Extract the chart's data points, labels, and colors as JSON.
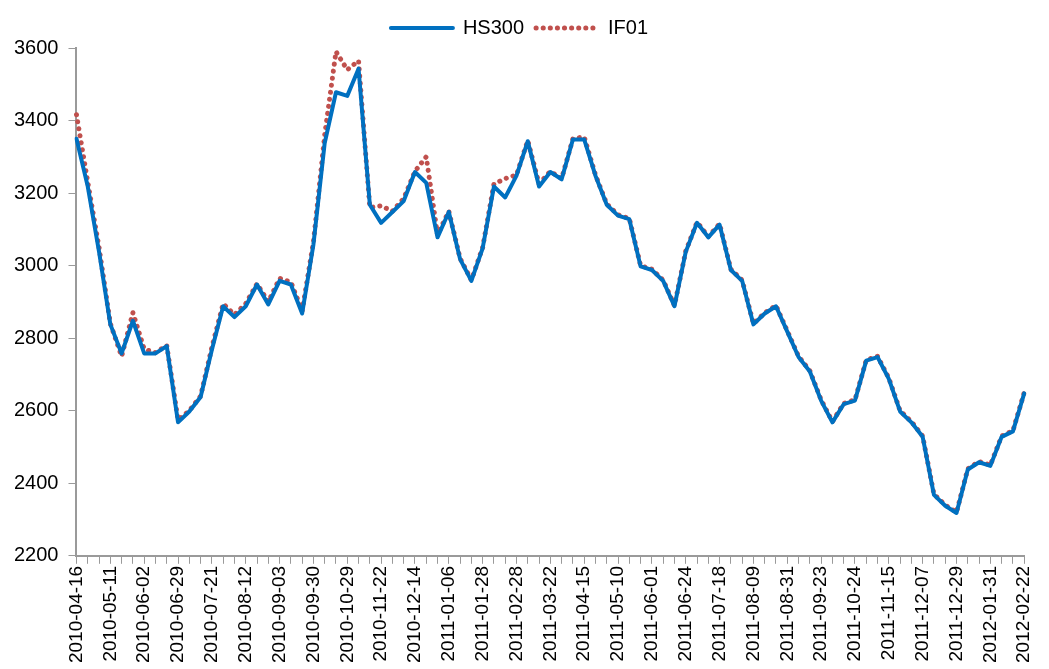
{
  "chart_data": {
    "type": "line",
    "categories": [
      "2010-04-16",
      null,
      null,
      "2010-05-11",
      null,
      null,
      "2010-06-02",
      null,
      null,
      "2010-06-29",
      null,
      null,
      "2010-07-21",
      null,
      null,
      "2010-08-12",
      null,
      null,
      "2010-09-03",
      null,
      null,
      "2010-09-30",
      null,
      null,
      "2010-10-29",
      null,
      null,
      "2010-11-22",
      null,
      null,
      "2010-12-14",
      null,
      null,
      "2011-01-06",
      null,
      null,
      "2011-01-28",
      null,
      null,
      "2011-02-28",
      null,
      null,
      "2011-03-22",
      null,
      null,
      "2011-04-15",
      null,
      null,
      "2011-05-10",
      null,
      null,
      "2011-06-01",
      null,
      null,
      "2011-06-24",
      null,
      null,
      "2011-07-18",
      null,
      null,
      "2011-08-09",
      null,
      null,
      "2011-08-31",
      null,
      null,
      "2011-09-23",
      null,
      null,
      "2011-10-24",
      null,
      null,
      "2011-11-15",
      null,
      null,
      "2011-12-07",
      null,
      null,
      "2011-12-29",
      null,
      null,
      "2012-01-31",
      null,
      null,
      "2012-02-22"
    ],
    "series": [
      {
        "name": "HS300",
        "color": "#0070c0",
        "line_style": "solid",
        "values": [
          3350,
          3218,
          3038,
          2838,
          2758,
          2848,
          2758,
          2758,
          2778,
          2568,
          2598,
          2638,
          2768,
          2888,
          2858,
          2888,
          2948,
          2893,
          2958,
          2948,
          2868,
          3058,
          3338,
          3478,
          3468,
          3543,
          3168,
          3118,
          3148,
          3178,
          3258,
          3228,
          3078,
          3148,
          3018,
          2958,
          3048,
          3218,
          3188,
          3248,
          3343,
          3218,
          3258,
          3238,
          3348,
          3348,
          3248,
          3168,
          3138,
          3128,
          2998,
          2988,
          2958,
          2888,
          3038,
          3118,
          3078,
          3113,
          2988,
          2958,
          2838,
          2868,
          2888,
          2818,
          2748,
          2708,
          2628,
          2568,
          2618,
          2628,
          2738,
          2748,
          2688,
          2598,
          2568,
          2528,
          2368,
          2338,
          2318,
          2438,
          2458,
          2448,
          2528,
          2543,
          2648
        ]
      },
      {
        "name": "IF01",
        "color": "#c0504d",
        "line_style": "dotted",
        "values": [
          3416,
          3230,
          3050,
          2840,
          2750,
          2870,
          2770,
          2760,
          2780,
          2575,
          2600,
          2640,
          2775,
          2895,
          2865,
          2895,
          2950,
          2900,
          2965,
          2955,
          2875,
          3065,
          3360,
          3590,
          3540,
          3565,
          3160,
          3165,
          3150,
          3185,
          3260,
          3300,
          3085,
          3150,
          3020,
          2960,
          3050,
          3225,
          3240,
          3250,
          3345,
          3225,
          3260,
          3240,
          3350,
          3355,
          3250,
          3170,
          3140,
          3130,
          3000,
          2990,
          2960,
          2890,
          3040,
          3120,
          3080,
          3115,
          2990,
          2960,
          2840,
          2870,
          2890,
          2820,
          2750,
          2710,
          2630,
          2570,
          2620,
          2630,
          2740,
          2750,
          2690,
          2600,
          2570,
          2530,
          2370,
          2340,
          2320,
          2440,
          2460,
          2450,
          2530,
          2545,
          2650
        ]
      }
    ],
    "ylim": [
      2200,
      3600
    ],
    "yticks": [
      2200,
      2400,
      2600,
      2800,
      3000,
      3200,
      3400,
      3600
    ],
    "grid": false,
    "legend": "top",
    "marker": "none"
  }
}
